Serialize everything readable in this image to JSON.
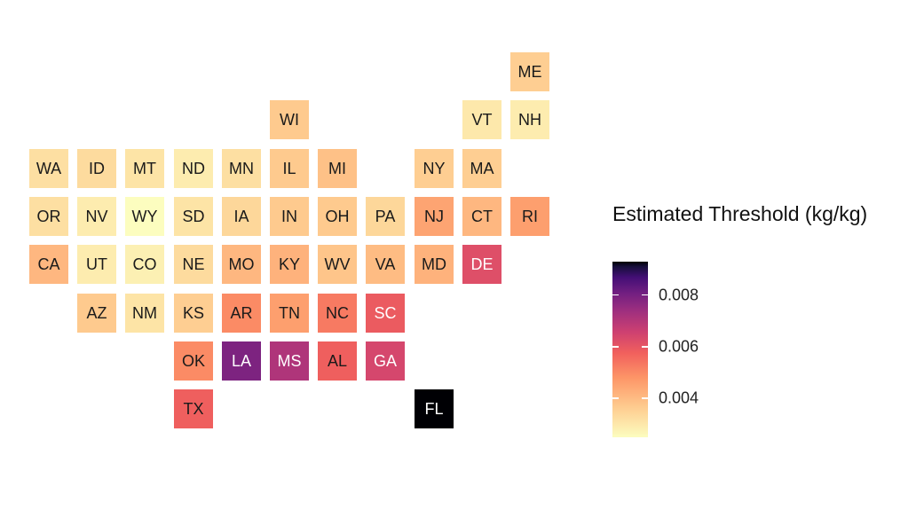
{
  "chart_data": {
    "type": "heatmap",
    "legend": {
      "title": "Estimated Threshold (kg/kg)",
      "scale": "magma (reversed): light yellow = low, black = high",
      "range": [
        0.0025,
        0.0093
      ],
      "ticks": [
        "0.004",
        "0.006",
        "0.008"
      ],
      "placement": "right"
    },
    "states": [
      {
        "abbr": "ME",
        "row": 0,
        "col": 10,
        "value": 0.0036
      },
      {
        "abbr": "WI",
        "row": 1,
        "col": 5,
        "value": 0.0037
      },
      {
        "abbr": "VT",
        "row": 1,
        "col": 9,
        "value": 0.003
      },
      {
        "abbr": "NH",
        "row": 1,
        "col": 10,
        "value": 0.0029
      },
      {
        "abbr": "WA",
        "row": 2,
        "col": 0,
        "value": 0.0032
      },
      {
        "abbr": "ID",
        "row": 2,
        "col": 1,
        "value": 0.0033
      },
      {
        "abbr": "MT",
        "row": 2,
        "col": 2,
        "value": 0.0031
      },
      {
        "abbr": "ND",
        "row": 2,
        "col": 3,
        "value": 0.0029
      },
      {
        "abbr": "MN",
        "row": 2,
        "col": 4,
        "value": 0.0032
      },
      {
        "abbr": "IL",
        "row": 2,
        "col": 5,
        "value": 0.0037
      },
      {
        "abbr": "MI",
        "row": 2,
        "col": 6,
        "value": 0.0039
      },
      {
        "abbr": "NY",
        "row": 2,
        "col": 8,
        "value": 0.0036
      },
      {
        "abbr": "MA",
        "row": 2,
        "col": 9,
        "value": 0.0036
      },
      {
        "abbr": "OR",
        "row": 3,
        "col": 0,
        "value": 0.0032
      },
      {
        "abbr": "NV",
        "row": 3,
        "col": 1,
        "value": 0.0029
      },
      {
        "abbr": "WY",
        "row": 3,
        "col": 2,
        "value": 0.0025
      },
      {
        "abbr": "SD",
        "row": 3,
        "col": 3,
        "value": 0.0031
      },
      {
        "abbr": "IA",
        "row": 3,
        "col": 4,
        "value": 0.0034
      },
      {
        "abbr": "IN",
        "row": 3,
        "col": 5,
        "value": 0.0037
      },
      {
        "abbr": "OH",
        "row": 3,
        "col": 6,
        "value": 0.0037
      },
      {
        "abbr": "PA",
        "row": 3,
        "col": 7,
        "value": 0.0034
      },
      {
        "abbr": "NJ",
        "row": 3,
        "col": 8,
        "value": 0.0045
      },
      {
        "abbr": "CT",
        "row": 3,
        "col": 9,
        "value": 0.0041
      },
      {
        "abbr": "RI",
        "row": 3,
        "col": 10,
        "value": 0.0046
      },
      {
        "abbr": "CA",
        "row": 4,
        "col": 0,
        "value": 0.0041
      },
      {
        "abbr": "UT",
        "row": 4,
        "col": 1,
        "value": 0.0029
      },
      {
        "abbr": "CO",
        "row": 4,
        "col": 2,
        "value": 0.0028
      },
      {
        "abbr": "NE",
        "row": 4,
        "col": 3,
        "value": 0.0033
      },
      {
        "abbr": "MO",
        "row": 4,
        "col": 4,
        "value": 0.0041
      },
      {
        "abbr": "KY",
        "row": 4,
        "col": 5,
        "value": 0.0042
      },
      {
        "abbr": "WV",
        "row": 4,
        "col": 6,
        "value": 0.0038
      },
      {
        "abbr": "VA",
        "row": 4,
        "col": 7,
        "value": 0.004
      },
      {
        "abbr": "MD",
        "row": 4,
        "col": 8,
        "value": 0.0042
      },
      {
        "abbr": "DE",
        "row": 4,
        "col": 9,
        "value": 0.0062
      },
      {
        "abbr": "AZ",
        "row": 5,
        "col": 1,
        "value": 0.0037
      },
      {
        "abbr": "NM",
        "row": 5,
        "col": 2,
        "value": 0.0031
      },
      {
        "abbr": "KS",
        "row": 5,
        "col": 3,
        "value": 0.0036
      },
      {
        "abbr": "AR",
        "row": 5,
        "col": 4,
        "value": 0.005
      },
      {
        "abbr": "TN",
        "row": 5,
        "col": 5,
        "value": 0.0046
      },
      {
        "abbr": "NC",
        "row": 5,
        "col": 6,
        "value": 0.0053
      },
      {
        "abbr": "SC",
        "row": 5,
        "col": 7,
        "value": 0.0059
      },
      {
        "abbr": "OK",
        "row": 6,
        "col": 3,
        "value": 0.005
      },
      {
        "abbr": "LA",
        "row": 6,
        "col": 4,
        "value": 0.0079
      },
      {
        "abbr": "MS",
        "row": 6,
        "col": 5,
        "value": 0.0071
      },
      {
        "abbr": "AL",
        "row": 6,
        "col": 6,
        "value": 0.0058
      },
      {
        "abbr": "GA",
        "row": 6,
        "col": 7,
        "value": 0.0064
      },
      {
        "abbr": "TX",
        "row": 7,
        "col": 3,
        "value": 0.0058
      },
      {
        "abbr": "FL",
        "row": 7,
        "col": 8,
        "value": 0.0093
      }
    ]
  }
}
